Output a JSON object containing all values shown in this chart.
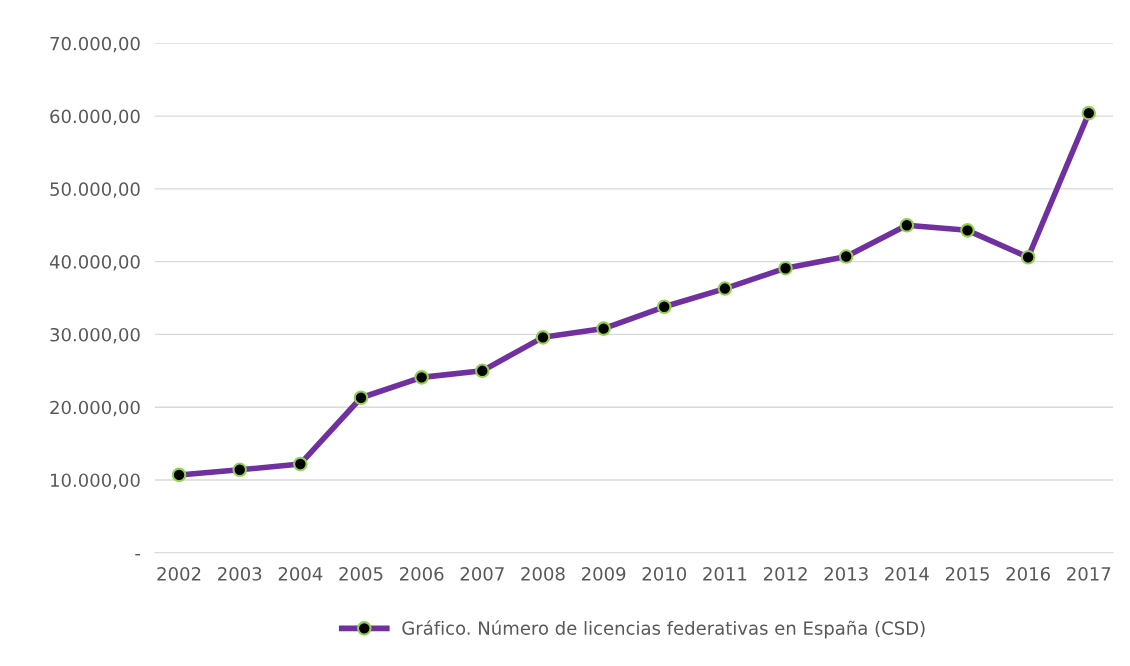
{
  "chart_data": {
    "type": "line",
    "categories": [
      "2002",
      "2003",
      "2004",
      "2005",
      "2006",
      "2007",
      "2008",
      "2009",
      "2010",
      "2011",
      "2012",
      "2013",
      "2014",
      "2015",
      "2016",
      "2017"
    ],
    "series": [
      {
        "name": "Gráfico. Número de licencias federativas en España (CSD)",
        "color": "#7030a0",
        "values": [
          10700,
          11400,
          12200,
          21300,
          24100,
          25000,
          29600,
          30800,
          33800,
          36300,
          39100,
          40700,
          45000,
          44300,
          40600,
          60400
        ]
      }
    ],
    "ylim": [
      0,
      70000
    ],
    "yticks": [
      {
        "value": 0,
        "label": "-"
      },
      {
        "value": 10000,
        "label": "10.000,00"
      },
      {
        "value": 20000,
        "label": "20.000,00"
      },
      {
        "value": 30000,
        "label": "30.000,00"
      },
      {
        "value": 40000,
        "label": "40.000,00"
      },
      {
        "value": 50000,
        "label": "50.000,00"
      },
      {
        "value": 60000,
        "label": "60.000,00"
      },
      {
        "value": 70000,
        "label": "70.000,00"
      }
    ],
    "grid": "y",
    "legend": "bottom",
    "marker": "circle",
    "line_style": "solid"
  }
}
